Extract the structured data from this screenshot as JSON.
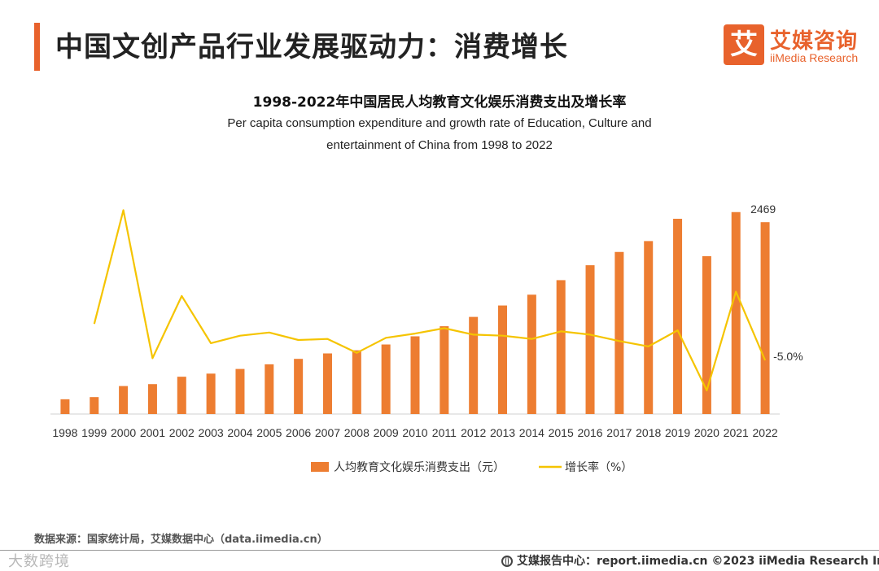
{
  "header": {
    "title": "中国文创产品行业发展驱动力：消费增长",
    "logo_cn": "艾媒咨询",
    "logo_en": "iiMedia Research",
    "logo_mark": "艾"
  },
  "colors": {
    "accent": "#e8622c",
    "bar": "#ed7d31",
    "line": "#f5c400"
  },
  "chart_data": {
    "type": "bar",
    "title": "1998-2022年中国居民人均教育文化娱乐消费支出及增长率",
    "subtitle_line1": "Per capita consumption expenditure and growth rate of Education, Culture and",
    "subtitle_line2": "entertainment of China from 1998 to 2022",
    "categories": [
      "1998",
      "1999",
      "2000",
      "2001",
      "2002",
      "2003",
      "2004",
      "2005",
      "2006",
      "2007",
      "2008",
      "2009",
      "2010",
      "2011",
      "2012",
      "2013",
      "2014",
      "2015",
      "2016",
      "2017",
      "2018",
      "2019",
      "2020",
      "2021",
      "2022"
    ],
    "series": [
      {
        "name": "人均教育文化娱乐消费支出（元）",
        "type": "bar",
        "values": [
          190,
          218,
          360,
          385,
          480,
          520,
          580,
          640,
          710,
          780,
          820,
          895,
          1000,
          1130,
          1250,
          1397,
          1536,
          1723,
          1915,
          2086,
          2226,
          2513,
          2032,
          2599,
          2469
        ]
      },
      {
        "name": "增长率（%）",
        "type": "line",
        "values": [
          null,
          12.0,
          65.0,
          -4.0,
          25.0,
          3.0,
          6.5,
          8.0,
          4.5,
          5.0,
          -1.5,
          5.5,
          7.5,
          10.0,
          7.0,
          6.5,
          5.0,
          8.5,
          7.0,
          4.0,
          1.5,
          9.0,
          -19.0,
          27.0,
          -5.0
        ]
      }
    ],
    "bar_ylim": [
      0,
      2900
    ],
    "line_ylim": [
      -30,
      75
    ],
    "annotations": {
      "last_bar_label": "2469",
      "last_line_label": "-5.0%"
    },
    "legend_position": "bottom-center"
  },
  "footer": {
    "source": "数据来源：国家统计局，艾媒数据中心（data.iimedia.cn）",
    "watermark": "大数跨境",
    "right_text": "艾媒报告中心：report.iimedia.cn   ©2023  iiMedia Research  Inc"
  }
}
